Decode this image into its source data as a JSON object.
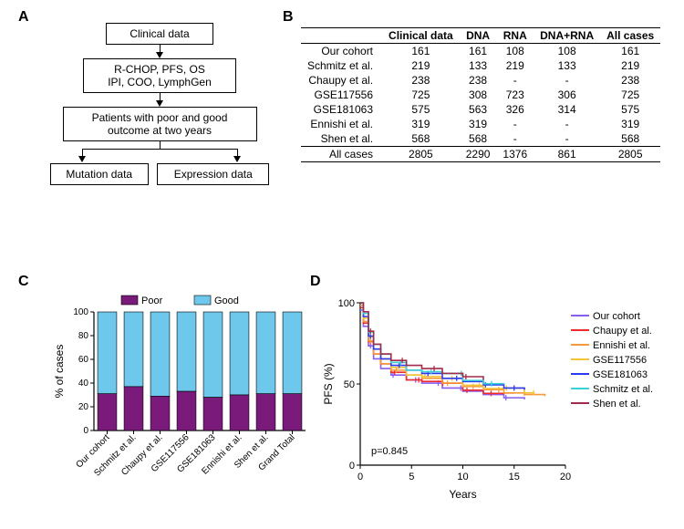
{
  "panels": {
    "A": "A",
    "B": "B",
    "C": "C",
    "D": "D"
  },
  "flow": {
    "b1": "Clinical data",
    "b2_l1": "R-CHOP, PFS, OS",
    "b2_l2": "IPI, COO, LymphGen",
    "b3_l1": "Patients with poor and good",
    "b3_l2": "outcome at two years",
    "b4a": "Mutation data",
    "b4b": "Expression data"
  },
  "table": {
    "columns": [
      "Clinical data",
      "DNA",
      "RNA",
      "DNA+RNA",
      "All cases"
    ],
    "rows": [
      {
        "name": "Our cohort",
        "v": [
          "161",
          "161",
          "108",
          "108",
          "161"
        ]
      },
      {
        "name": "Schmitz et al.",
        "v": [
          "219",
          "133",
          "219",
          "133",
          "219"
        ]
      },
      {
        "name": "Chaupy et al.",
        "v": [
          "238",
          "238",
          "-",
          "-",
          "238"
        ]
      },
      {
        "name": "GSE117556",
        "v": [
          "725",
          "308",
          "723",
          "306",
          "725"
        ]
      },
      {
        "name": "GSE181063",
        "v": [
          "575",
          "563",
          "326",
          "314",
          "575"
        ]
      },
      {
        "name": "Ennishi et al.",
        "v": [
          "319",
          "319",
          "-",
          "-",
          "319"
        ]
      },
      {
        "name": "Shen et al.",
        "v": [
          "568",
          "568",
          "-",
          "-",
          "568"
        ]
      }
    ],
    "total": {
      "name": "All cases",
      "v": [
        "2805",
        "2290",
        "1376",
        "861",
        "2805"
      ]
    }
  },
  "barC": {
    "type": "stacked-bar",
    "ylim": [
      0,
      100
    ],
    "ytick_step": 20,
    "ylabel": "% of cases",
    "legend": [
      {
        "label": "Poor",
        "color": "#7a1a7a"
      },
      {
        "label": "Good",
        "color": "#6ec8eb"
      }
    ],
    "categories": [
      "Our cohort",
      "Schmitz et al.",
      "Chaupy et al.",
      "GSE117556",
      "GSE181063",
      "Ennishi et al.",
      "Shen et al.",
      "Grand Total"
    ],
    "poor": [
      31,
      37,
      29,
      33,
      28,
      30,
      31,
      31
    ],
    "bar_colors": {
      "poor": "#7a1a7a",
      "good": "#6ec8eb"
    },
    "axis_color": "#000000",
    "bar_width": 0.72,
    "label_fontsize": 10
  },
  "survD": {
    "type": "kaplan-meier",
    "xlabel": "Years",
    "ylabel": "PFS (%)",
    "xlim": [
      0,
      20
    ],
    "xtick_step": 5,
    "ylim": [
      0,
      100
    ],
    "ytick_step": 50,
    "pvalue": "p=0.845",
    "series": [
      {
        "name": "Our cohort",
        "color": "#8a5cf0"
      },
      {
        "name": "Chaupy et al.",
        "color": "#ef2b2b"
      },
      {
        "name": "Ennishi et al.",
        "color": "#f59a3a"
      },
      {
        "name": "GSE117556",
        "color": "#f5c23a"
      },
      {
        "name": "GSE181063",
        "color": "#2b3bef"
      },
      {
        "name": "Schmitz et al.",
        "color": "#3ad0d6"
      },
      {
        "name": "Shen et al.",
        "color": "#a02b4a"
      }
    ],
    "label_fontsize": 11
  }
}
